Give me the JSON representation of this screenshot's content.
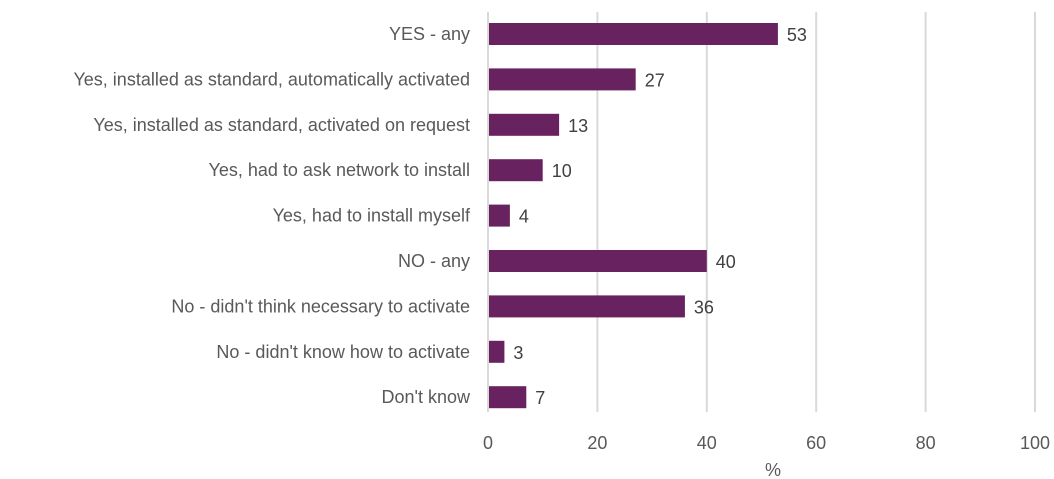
{
  "chart_data": {
    "type": "bar",
    "orientation": "horizontal",
    "categories": [
      "YES - any",
      "Yes, installed as standard, automatically activated",
      "Yes, installed as standard, activated on request",
      "Yes, had to ask network to install",
      "Yes, had to install myself",
      "NO - any",
      "No - didn't think necessary to activate",
      "No - didn't know how to activate",
      "Don't know"
    ],
    "values": [
      53,
      27,
      13,
      10,
      4,
      40,
      36,
      3,
      7
    ],
    "xlabel": "%",
    "xlim": [
      0,
      100
    ],
    "xticks": [
      0,
      20,
      40,
      60,
      80,
      100
    ],
    "grid": "vertical",
    "legend": "none",
    "bar_color": "#68225f"
  }
}
